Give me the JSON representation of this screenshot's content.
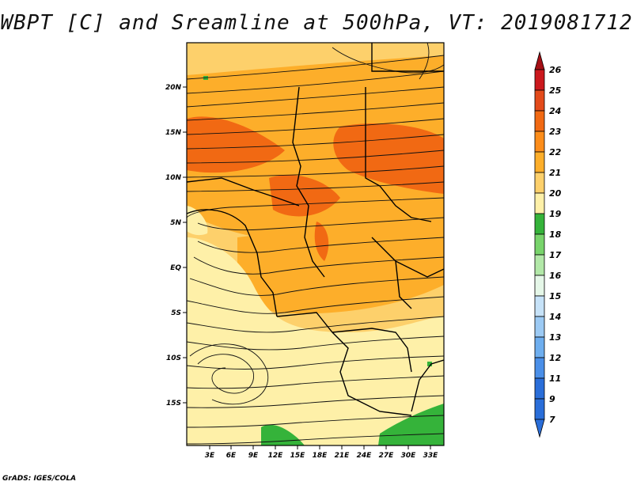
{
  "title": "WBPT [C] and Sreamline at 500hPa, VT: 2019081712",
  "footer": "GrADS: IGES/COLA",
  "map": {
    "lat_ticks": [
      "20N",
      "15N",
      "10N",
      "5N",
      "EQ",
      "5S",
      "10S",
      "15S"
    ],
    "lon_ticks": [
      "3E",
      "6E",
      "9E",
      "12E",
      "15E",
      "18E",
      "21E",
      "24E",
      "27E",
      "30E",
      "33E"
    ]
  },
  "colorbar": {
    "labels": [
      "26",
      "25",
      "24",
      "23",
      "22",
      "21",
      "20",
      "19",
      "18",
      "17",
      "16",
      "15",
      "14",
      "13",
      "12",
      "11",
      "9",
      "7"
    ],
    "colors": [
      "#a50f15",
      "#cb181d",
      "#e34a1a",
      "#f16913",
      "#fd8d1a",
      "#fdae2a",
      "#fdd06b",
      "#fef0a8",
      "#35b33a",
      "#78d46b",
      "#b2e8a8",
      "#e5f7e8",
      "#c6e2f8",
      "#9ccaf4",
      "#6eaeef",
      "#4a8fe8",
      "#2a6ed9",
      "#2a6ed9"
    ]
  }
}
